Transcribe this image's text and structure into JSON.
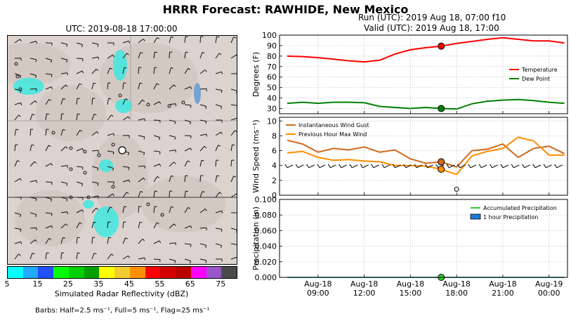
{
  "title": "HRRR Forecast: RAWHIDE, New Mexico",
  "run_label": "Run (UTC): 2019 Aug 18, 07:00 f10",
  "valid_label": "Valid (UTC): 2019 Aug 18, 17:00",
  "map": {
    "title": "UTC: 2019-08-18 17:00:00",
    "colorbar_label": "Simulated Radar Reflectivity (dBZ)",
    "colorbar_ticks": [
      "5",
      "15",
      "25",
      "35",
      "45",
      "55",
      "65",
      "75"
    ],
    "colorbar_colors": [
      "#00ffff",
      "#21aaff",
      "#2050ff",
      "#00ff00",
      "#00d000",
      "#00a000",
      "#ffff00",
      "#f2cc33",
      "#ff9000",
      "#ff0000",
      "#d40000",
      "#bc0000",
      "#ff00ff",
      "#9955c9",
      "#4a4a4a"
    ],
    "barbs_note": "Barbs: Half=2.5 ms⁻¹, Full=5 ms⁻¹, Flag=25 ms⁻¹"
  },
  "chart_data": [
    {
      "type": "line",
      "ylabel": "Degrees (F)",
      "ylim": [
        25,
        100
      ],
      "yticks": [
        "30",
        "40",
        "50",
        "60",
        "70",
        "80",
        "90",
        "100"
      ],
      "x_hours": [
        7,
        8,
        9,
        10,
        11,
        12,
        13,
        14,
        15,
        16,
        17,
        18,
        19,
        20,
        21,
        22,
        23,
        24,
        25
      ],
      "series": [
        {
          "name": "Temperature",
          "color": "#ff0000",
          "values": [
            80,
            79.5,
            78.5,
            77,
            75.5,
            74.5,
            76,
            82,
            86,
            88,
            89.5,
            92,
            94,
            96,
            97.5,
            96,
            94.5,
            94.5,
            92.5
          ]
        },
        {
          "name": "Dew Point",
          "color": "#008000",
          "values": [
            35,
            36,
            35,
            36,
            36,
            35.5,
            32,
            31,
            30,
            31,
            30,
            29.5,
            34.5,
            37,
            38,
            38.5,
            37.5,
            36,
            35
          ]
        }
      ],
      "marker": {
        "x": 17,
        "values": [
          89.5,
          30
        ]
      },
      "legend": "right",
      "grid": true
    },
    {
      "type": "line",
      "ylabel": "Wind Speed (ms⁻¹)",
      "ylim": [
        0,
        10.5
      ],
      "yticks": [
        "0",
        "2",
        "4",
        "6",
        "8",
        "10"
      ],
      "x_hours": [
        7,
        8,
        9,
        10,
        11,
        12,
        13,
        14,
        15,
        16,
        17,
        18,
        19,
        20,
        21,
        22,
        23,
        24,
        25
      ],
      "series": [
        {
          "name": "Instantaneous Wind Gust",
          "color": "#d2691e",
          "values": [
            7.4,
            6.9,
            5.8,
            6.3,
            6.1,
            6.5,
            5.8,
            6.1,
            4.9,
            4.3,
            4.5,
            3.8,
            6,
            6.2,
            6.9,
            5.1,
            6.3,
            6.6,
            5.6
          ]
        },
        {
          "name": "Previous Hour Max Wind",
          "color": "#ff8c00",
          "values": [
            5.7,
            5.9,
            5.1,
            4.7,
            4.8,
            4.6,
            4.5,
            4.0,
            4.0,
            3.9,
            3.5,
            2.8,
            5.3,
            5.9,
            6.3,
            7.8,
            7.3,
            5.4,
            5.4
          ]
        }
      ],
      "marker": {
        "x": 17,
        "values": [
          4.5,
          3.5
        ]
      },
      "legend": "top-left",
      "grid": true
    },
    {
      "type": "line",
      "ylabel": "Precipitation (in)",
      "ylim": [
        0,
        0.1
      ],
      "yticks": [
        "0.000",
        "0.020",
        "0.040",
        "0.060",
        "0.080",
        "0.100"
      ],
      "x_hours": [
        7,
        8,
        9,
        10,
        11,
        12,
        13,
        14,
        15,
        16,
        17,
        18,
        19,
        20,
        21,
        22,
        23,
        24,
        25
      ],
      "series": [
        {
          "name": "Accumulated Precipitation",
          "color": "#32cd32",
          "values": [
            0,
            0,
            0,
            0,
            0,
            0,
            0,
            0,
            0,
            0,
            0,
            0,
            0,
            0,
            0,
            0,
            0,
            0,
            0
          ]
        },
        {
          "name": "1 hour Precipitation",
          "color": "#1e7bd8",
          "values": [
            0,
            0,
            0,
            0,
            0,
            0,
            0,
            0,
            0,
            0,
            0,
            0,
            0,
            0,
            0,
            0,
            0,
            0,
            0
          ]
        }
      ],
      "marker": {
        "x": 17,
        "values": [
          0
        ]
      },
      "legend": "top-right",
      "grid": true
    }
  ],
  "x_ticks": [
    {
      "hour": 9,
      "line1": "Aug-18",
      "line2": "09:00"
    },
    {
      "hour": 12,
      "line1": "Aug-18",
      "line2": "12:00"
    },
    {
      "hour": 15,
      "line1": "Aug-18",
      "line2": "15:00"
    },
    {
      "hour": 18,
      "line1": "Aug-18",
      "line2": "18:00"
    },
    {
      "hour": 21,
      "line1": "Aug-18",
      "line2": "21:00"
    },
    {
      "hour": 24,
      "line1": "Aug-19",
      "line2": "00:00"
    }
  ]
}
